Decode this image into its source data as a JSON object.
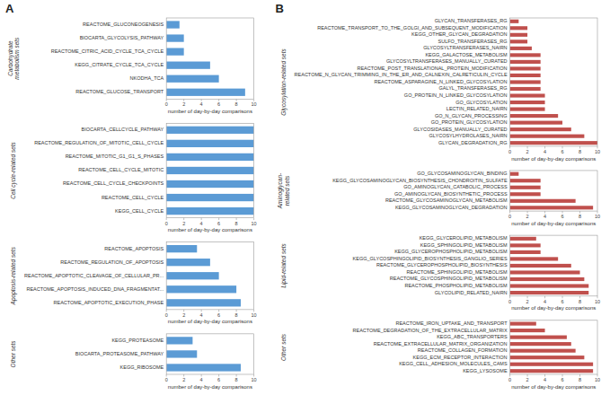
{
  "chart_data": [
    {
      "type": "bar",
      "orientation": "horizontal",
      "annotations": [
        "A"
      ],
      "title": "Carbohydrate\nmetabolism sets",
      "color": "#5b9bd5",
      "categories": [
        "REACTOME_GLUCONEOGENESIS",
        "BIOCARTA_GLYCOLYSIS_PATHWAY",
        "REACTOME_CITRIC_ACID_CYCLE_TCA_CYCLE",
        "KEGG_CITRATE_CYCLE_TCA_CYCLE",
        "NKODHA_TCA",
        "REACTOME_GLUCOSE_TRANSPORT"
      ],
      "values": [
        1.5,
        2.0,
        2.0,
        5.0,
        6.0,
        9.0
      ],
      "xlabel": "number of day-by-day comparisons",
      "xlim": [
        0,
        10
      ],
      "xticks": [
        0,
        2,
        4,
        6,
        8,
        10
      ],
      "grid": false
    },
    {
      "type": "bar",
      "orientation": "horizontal",
      "title": "Cell cycle-related sets",
      "color": "#5b9bd5",
      "categories": [
        "BIOCARTA_CELLCYCLE_PATHWAY",
        "REACTOME_REGULATION_OF_MITOTIC_CELL_CYCLE",
        "REACTOME_MITOTIC_G1_G1_S_PHASES",
        "REACTOME_CELL_CYCLE_MITOTIC",
        "REACTOME_CELL_CYCLE_CHECKPOINTS",
        "REACTOME_CELL_CYCLE",
        "KEGG_CELL_CYCLE"
      ],
      "values": [
        10.0,
        10.0,
        10.0,
        10.0,
        10.0,
        10.0,
        10.0
      ],
      "xlabel": "number of day-by-day comparisons",
      "xlim": [
        0,
        10
      ],
      "xticks": [
        0,
        2,
        4,
        6,
        8,
        10
      ],
      "grid": false
    },
    {
      "type": "bar",
      "orientation": "horizontal",
      "title": "Apoptosis-related sets",
      "color": "#5b9bd5",
      "categories": [
        "REACTOME_APOPTOSIS",
        "REACTOME_REGULATION_OF_APOPTOSIS",
        "REACTOME_APOPTOTIC_CLEAVAGE_OF_CELLULAR_PR...",
        "REACTOME_APOPTOSIS_INDUCED_DNA_FRAGMENTAT...",
        "REACTOME_APOPTOTIC_EXECUTION_PHASE"
      ],
      "values": [
        3.5,
        5.0,
        6.0,
        8.0,
        8.5
      ],
      "xlabel": "number of day-by-day comparisons",
      "xlim": [
        0,
        10
      ],
      "xticks": [
        0,
        2,
        4,
        6,
        8,
        10
      ],
      "grid": false
    },
    {
      "type": "bar",
      "orientation": "horizontal",
      "title": "Other sets",
      "color": "#5b9bd5",
      "categories": [
        "KEGG_PROTEASOME",
        "BIOCARTA_PROTEASOME_PATHWAY",
        "KEGG_RIBOSOME"
      ],
      "values": [
        3.0,
        3.5,
        8.5
      ],
      "xlabel": "number of day-by-day comparisons",
      "xlim": [
        0,
        10
      ],
      "xticks": [
        0,
        2,
        4,
        6,
        8,
        10
      ],
      "grid": false
    },
    {
      "type": "bar",
      "orientation": "horizontal",
      "annotations": [
        "B"
      ],
      "title": "Glycosylation-related sets",
      "color": "#c0504d",
      "categories": [
        "GLYCAN_TRANSFERASES_RG",
        "REACTOME_TRANSPORT_TO_THE_GOLGI_AND_SUBSEQUENT_MODIFICATION",
        "KEGG_OTHER_GLYCAN_DEGRADATION",
        "SULFO_TRANSFERASES_RG",
        "GLYCOSYLTRANSFERASES_NAIRN",
        "KEGG_GALACTOSE_METABOLISM",
        "GLYCOSYLTRANSFERASES_MANUALLY_CURATED",
        "REACTOME_POST_TRANSLATIONAL_PROTEIN_MODIFICATION",
        "REACTOME_N_GLYCAN_TRIMMING_IN_THE_ER_AND_CALNEXIN_CALRETICULIN_CYCLE",
        "REACTOME_ASPARAGINE_N_LINKED_GLYCOSYLATION",
        "GALYL_TRANSFERASES_RG",
        "GO_PROTEIN_N_LINKED_GLYCOSYLATION",
        "GO_GLYCOSYLATION",
        "LECTIN_RELATED_NAIRN",
        "GO_N_GLYCAN_PROCESSING",
        "GO_PROTEIN_GLYCOSYLATION",
        "GLYCOSIDASES_MANUALLY_CURATED",
        "GLYCOSYLHYDROLASES_NAIRN",
        "GLYCAN_DEGRADATION_RG"
      ],
      "values": [
        1.0,
        2.0,
        2.0,
        2.0,
        2.5,
        3.5,
        3.5,
        3.5,
        3.5,
        3.5,
        3.5,
        4.0,
        4.0,
        4.0,
        5.5,
        6.0,
        7.0,
        8.5,
        10.0
      ],
      "xlabel": "number of day-by-day comparisons",
      "xlim": [
        0,
        10
      ],
      "xticks": [
        0,
        2,
        4,
        6,
        8,
        10
      ],
      "grid": false
    },
    {
      "type": "bar",
      "orientation": "horizontal",
      "title": "Aminoglycan-\nrelated sets",
      "color": "#c0504d",
      "categories": [
        "GO_GLYCOSAMINOGLYCAN_BINDING",
        "KEGG_GLYCOSAMINOGLYCAN_BIOSYNTHESIS_CHONDROITIN_SULFATE",
        "GO_AMINOGLYCAN_CATABOLIC_PROCESS",
        "GO_AMINOGLYCAN_BIOSYNTHETIC_PROCESS",
        "REACTOME_GLYCOSAMINOGLYCAN_METABOLISM",
        "KEGG_GLYCOSAMINOGLYCAN_DEGRADATION"
      ],
      "values": [
        1.0,
        3.5,
        3.5,
        3.5,
        7.5,
        9.5
      ],
      "xlabel": "number of day-by-day comparisons",
      "xlim": [
        0,
        10
      ],
      "xticks": [
        0,
        2,
        4,
        6,
        8,
        10
      ],
      "grid": false
    },
    {
      "type": "bar",
      "orientation": "horizontal",
      "title": "Lipid-related sets",
      "color": "#c0504d",
      "categories": [
        "KEGG_GLYCEROLIPID_METABOLISM",
        "KEGG_SPHINGOLIPID_METABOLISM",
        "KEGG_GLYCEROPHOSPHOLIPID_METABOLISM",
        "KEGG_GLYCOSPHINGOLIPID_BIOSYNTHESIS_GANGLIO_SERIES",
        "REACTOME_GLYCEROPHOSPHOLIPID_BIOSYNTHESIS",
        "REACTOME_SPHINGOLIPID_METABOLISM",
        "REACTOME_GLYCOSPHINGOLIPID_METABOLISM",
        "REACTOME_PHOSPHOLIPID_METABOLISM",
        "GLYCOLIPID_RELATED_NAIRN"
      ],
      "values": [
        3.0,
        3.5,
        3.5,
        5.5,
        7.0,
        8.0,
        8.5,
        9.0,
        9.0
      ],
      "xlabel": "number of day-by-day comparisons",
      "xlim": [
        0,
        10
      ],
      "xticks": [
        0,
        2,
        4,
        6,
        8,
        10
      ],
      "grid": false
    },
    {
      "type": "bar",
      "orientation": "horizontal",
      "title": "Other sets",
      "color": "#c0504d",
      "categories": [
        "REACTOME_IRON_UPTAKE_AND_TRANSPORT",
        "REACTOME_DEGRADATION_OF_THE_EXTRACELLULAR_MATRIX",
        "KEGG_ABC_TRANSPORTERS",
        "REACTOME_EXTRACELLULAR_MATRIX_ORGANIZATION",
        "REACTOME_COLLAGEN_FORMATION",
        "KEGG_ECM_RECEPTOR_INTERACTION",
        "KEGG_CELL_ADHESION_MOLECULES_CAMS",
        "KEGG_LYSOSOME"
      ],
      "values": [
        3.0,
        4.0,
        6.5,
        7.0,
        7.5,
        8.5,
        9.5,
        9.5
      ],
      "xlabel": "number of day-by-day comparisons",
      "xlim": [
        0,
        10
      ],
      "xticks": [
        0,
        2,
        4,
        6,
        8,
        10
      ],
      "grid": false
    }
  ]
}
